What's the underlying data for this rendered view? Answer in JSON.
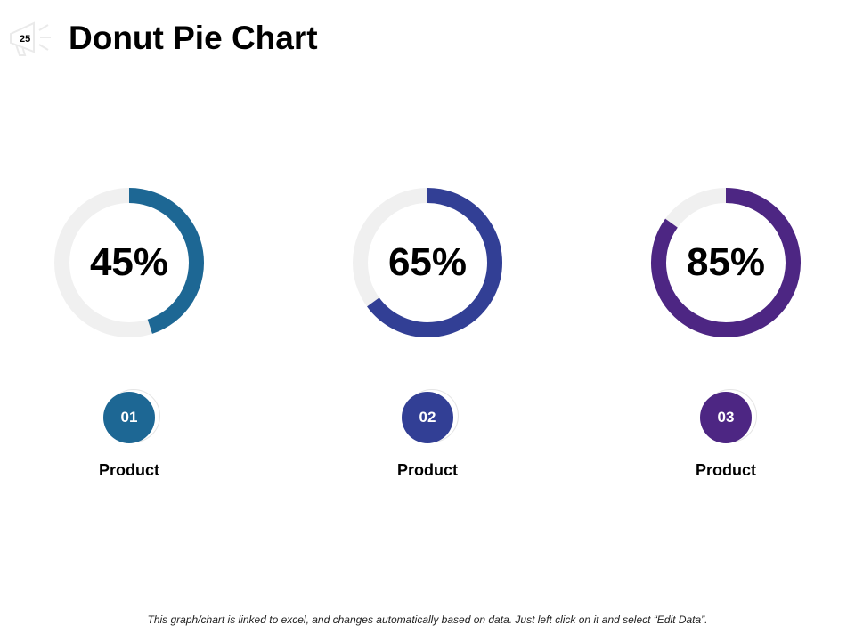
{
  "slide_number": "25",
  "title": "Donut Pie Chart",
  "footer": "This graph/chart is linked to excel, and changes automatically  based on data.  Just left click on it and select “Edit Data”.",
  "chart_data": {
    "type": "pie",
    "variant": "donut",
    "title": "Donut Pie Chart",
    "track_color": "#f0f0f0",
    "items": [
      {
        "value": 45,
        "label": "45%",
        "number": "01",
        "name": "Product",
        "color": "#1d6794"
      },
      {
        "value": 65,
        "label": "65%",
        "number": "02",
        "name": "Product",
        "color": "#323f95"
      },
      {
        "value": 85,
        "label": "85%",
        "number": "03",
        "name": "Product",
        "color": "#4d2683"
      }
    ]
  }
}
